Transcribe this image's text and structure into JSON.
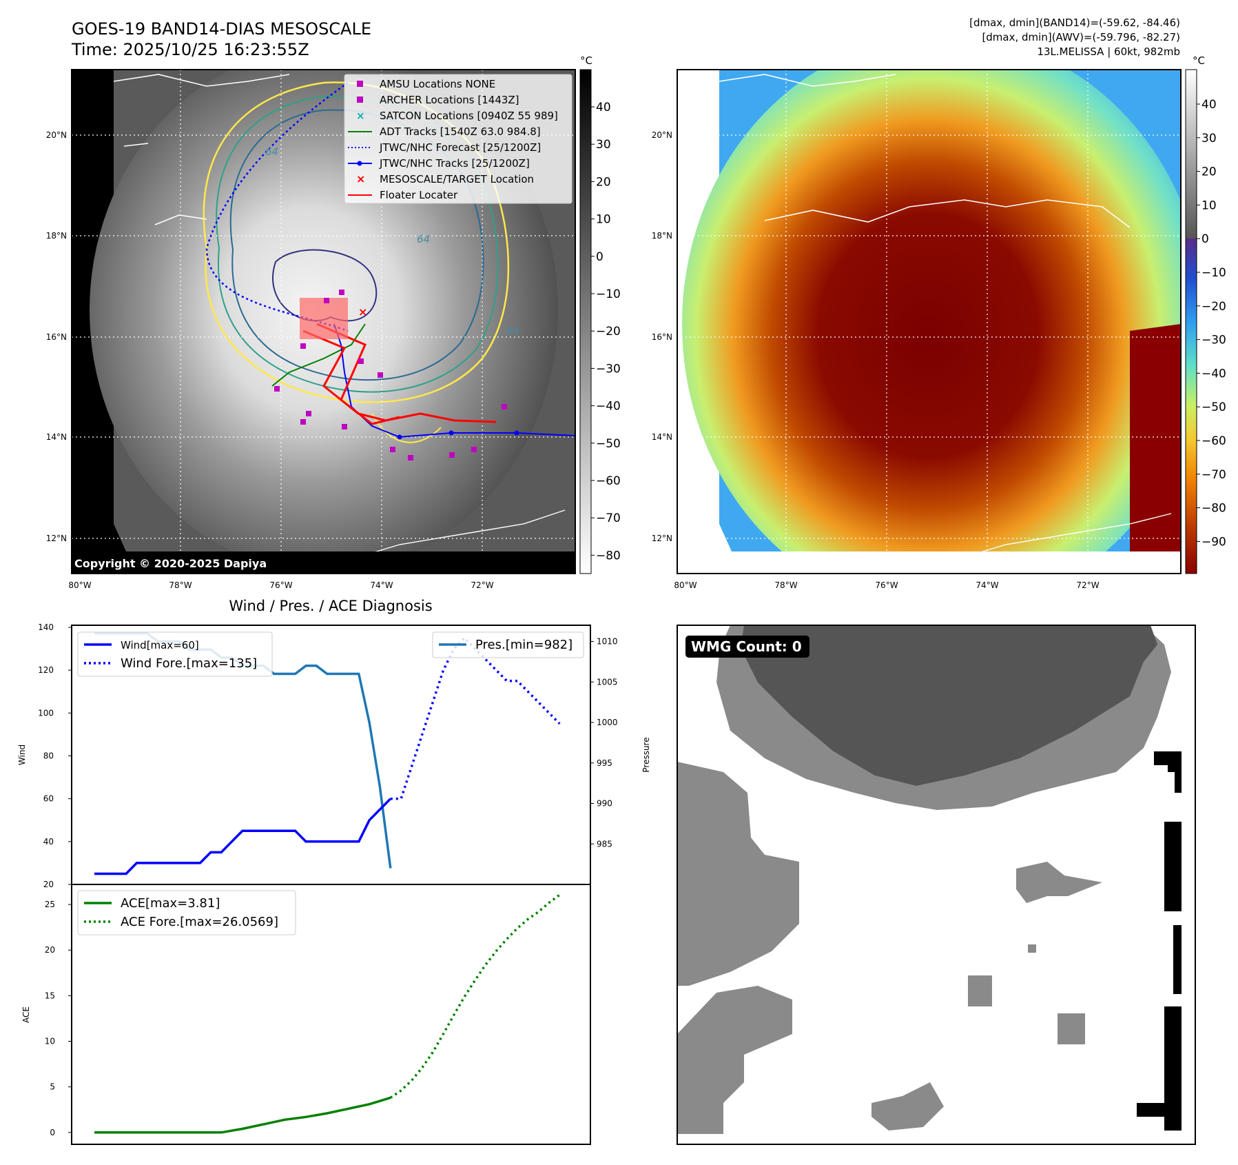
{
  "header": {
    "title_line1": "GOES-19 BAND14-DIAS MESOSCALE",
    "title_line2": "Time: 2025/10/25 16:23:55Z",
    "info_line1": "[dmax, dmin](BAND14)=(-59.62, -84.46)",
    "info_line2": "[dmax, dmin](AWV)=(-59.796, -82.27)",
    "info_line3": "13L.MELISSA | 60kt, 982mb"
  },
  "map_axes": {
    "lat_labels": [
      "20°N",
      "18°N",
      "16°N",
      "14°N",
      "12°N"
    ],
    "lon_labels": [
      "80°W",
      "78°W",
      "76°W",
      "74°W",
      "72°W"
    ]
  },
  "colorbar_gray": {
    "unit": "°C",
    "ticks": [
      "40",
      "30",
      "20",
      "10",
      "0",
      "−10",
      "−20",
      "−30",
      "−40",
      "−50",
      "−60",
      "−70",
      "−80"
    ]
  },
  "colorbar_color": {
    "unit": "°C",
    "ticks": [
      "40",
      "30",
      "20",
      "10",
      "0",
      "−10",
      "−20",
      "−30",
      "−40",
      "−50",
      "−60",
      "−70",
      "−80",
      "−90"
    ]
  },
  "map_legend": [
    {
      "label": "AMSU Locations NONE",
      "kind": "square",
      "color": "#c000c0"
    },
    {
      "label": "ARCHER Locations [1443Z]",
      "kind": "square",
      "color": "#c000c0"
    },
    {
      "label": "SATCON Locations [0940Z 55 989]",
      "kind": "cross",
      "color": "#00b0b0"
    },
    {
      "label": "ADT Tracks [1540Z 63.0 984.8]",
      "kind": "line",
      "color": "#008000"
    },
    {
      "label": "JTWC/NHC Forecast [25/1200Z]",
      "kind": "dotted",
      "color": "#0000ff"
    },
    {
      "label": "JTWC/NHC Tracks [25/1200Z]",
      "kind": "dotline",
      "color": "#0000ff"
    },
    {
      "label": "MESOSCALE/TARGET Location",
      "kind": "x",
      "color": "#ff0000"
    },
    {
      "label": "Floater Locater",
      "kind": "line",
      "color": "#ff0000"
    }
  ],
  "contour_labels": [
    "64",
    "64",
    "64"
  ],
  "copyright": "Copyright © 2020-2025 Dapiya",
  "diagnosis": {
    "title": "Wind / Pres. / ACE Diagnosis",
    "wind_ylabel": "Wind",
    "pres_ylabel": "Pressure",
    "ace_ylabel": "ACE",
    "wind_ticks": [
      "140",
      "120",
      "100",
      "80",
      "60",
      "40",
      "20"
    ],
    "pres_ticks": [
      "1010",
      "1005",
      "1000",
      "995",
      "990",
      "985"
    ],
    "ace_ticks": [
      "25",
      "20",
      "15",
      "10",
      "5",
      "0"
    ],
    "legend_wind": "Wind[max=60]",
    "legend_wind_fore": "Wind Fore.[max=135]",
    "legend_pres": "Pres.[min=982]",
    "legend_ace": "ACE[max=3.81]",
    "legend_ace_fore": "ACE Fore.[max=26.0569]"
  },
  "wmg": {
    "label": "WMG Count: 0"
  },
  "chart_data": [
    {
      "type": "line",
      "title": "Wind / Pres. / ACE Diagnosis",
      "ylabel": "Wind",
      "ylim": [
        20,
        140
      ],
      "series": [
        {
          "name": "Wind[max=60]",
          "color": "#0000ff",
          "style": "solid",
          "x": [
            0,
            1,
            2,
            3,
            4,
            5,
            6,
            7,
            8,
            9,
            10,
            11,
            12,
            13,
            14,
            15,
            16,
            17,
            18,
            19,
            20,
            21,
            22,
            23,
            24,
            25,
            26,
            27,
            28
          ],
          "values": [
            25,
            25,
            25,
            25,
            30,
            30,
            30,
            30,
            30,
            30,
            30,
            35,
            35,
            40,
            45,
            45,
            45,
            45,
            45,
            45,
            40,
            40,
            40,
            40,
            40,
            40,
            50,
            55,
            60
          ]
        },
        {
          "name": "Wind Fore.[max=135]",
          "color": "#0000ff",
          "style": "dotted",
          "x": [
            28,
            29,
            30,
            31,
            32,
            33,
            34,
            35,
            36,
            37,
            38,
            39,
            40,
            41,
            42,
            43,
            44
          ],
          "values": [
            60,
            60,
            75,
            90,
            105,
            120,
            130,
            135,
            130,
            125,
            120,
            115,
            115,
            110,
            105,
            100,
            95
          ]
        }
      ]
    },
    {
      "type": "line",
      "ylabel": "Pressure",
      "ylim": [
        980,
        1012
      ],
      "series": [
        {
          "name": "Pres.[min=982]",
          "color": "#1f77b4",
          "style": "solid",
          "x": [
            0,
            1,
            2,
            3,
            4,
            5,
            6,
            7,
            8,
            9,
            10,
            11,
            12,
            13,
            14,
            15,
            16,
            17,
            18,
            19,
            20,
            21,
            22,
            23,
            24,
            25,
            26,
            27,
            28
          ],
          "values": [
            1011,
            1011,
            1011,
            1011,
            1011,
            1011,
            1010,
            1010,
            1010,
            1009,
            1009,
            1009,
            1008,
            1008,
            1007,
            1007,
            1007,
            1006,
            1006,
            1006,
            1007,
            1007,
            1006,
            1006,
            1006,
            1006,
            1000,
            992,
            982
          ]
        }
      ]
    },
    {
      "type": "line",
      "ylabel": "ACE",
      "ylim": [
        -1.3,
        27.2
      ],
      "series": [
        {
          "name": "ACE[max=3.81]",
          "color": "#008000",
          "style": "solid",
          "x": [
            0,
            4,
            8,
            12,
            14,
            16,
            18,
            20,
            22,
            24,
            26,
            28
          ],
          "values": [
            0,
            0,
            0,
            0,
            0.4,
            0.9,
            1.4,
            1.7,
            2.1,
            2.6,
            3.1,
            3.81
          ]
        },
        {
          "name": "ACE Fore.[max=26.0569]",
          "color": "#008000",
          "style": "dotted",
          "x": [
            28,
            29,
            30,
            31,
            32,
            33,
            34,
            35,
            36,
            37,
            38,
            39,
            40,
            41,
            42,
            43,
            44
          ],
          "values": [
            3.81,
            4.6,
            5.7,
            7.1,
            8.8,
            10.8,
            12.9,
            14.9,
            16.7,
            18.4,
            19.9,
            21.2,
            22.4,
            23.4,
            24.2,
            25.2,
            26.06
          ]
        }
      ]
    }
  ]
}
